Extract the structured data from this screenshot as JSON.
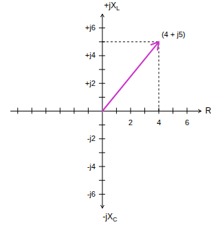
{
  "chart_data": {
    "type": "phasor",
    "x_label": "R",
    "y_label_top": {
      "text": "+jX",
      "subscript": "L"
    },
    "y_label_bottom": {
      "text": "-jX",
      "subscript": "C"
    },
    "xlim": [
      -6.5,
      7
    ],
    "ylim": [
      -7,
      7
    ],
    "xticks": [
      2,
      4,
      6
    ],
    "yticks": [
      {
        "value": 6,
        "label": "+j6"
      },
      {
        "value": 4,
        "label": "+j4"
      },
      {
        "value": 2,
        "label": "+j2"
      },
      {
        "value": -2,
        "label": "-j2"
      },
      {
        "value": -4,
        "label": "-j4"
      },
      {
        "value": -6,
        "label": "-j6"
      }
    ],
    "vectors": [
      {
        "x": 4,
        "y": 5,
        "label": "(4 + j5)"
      }
    ],
    "color": "#cc33cc",
    "line_style": "dashed"
  }
}
